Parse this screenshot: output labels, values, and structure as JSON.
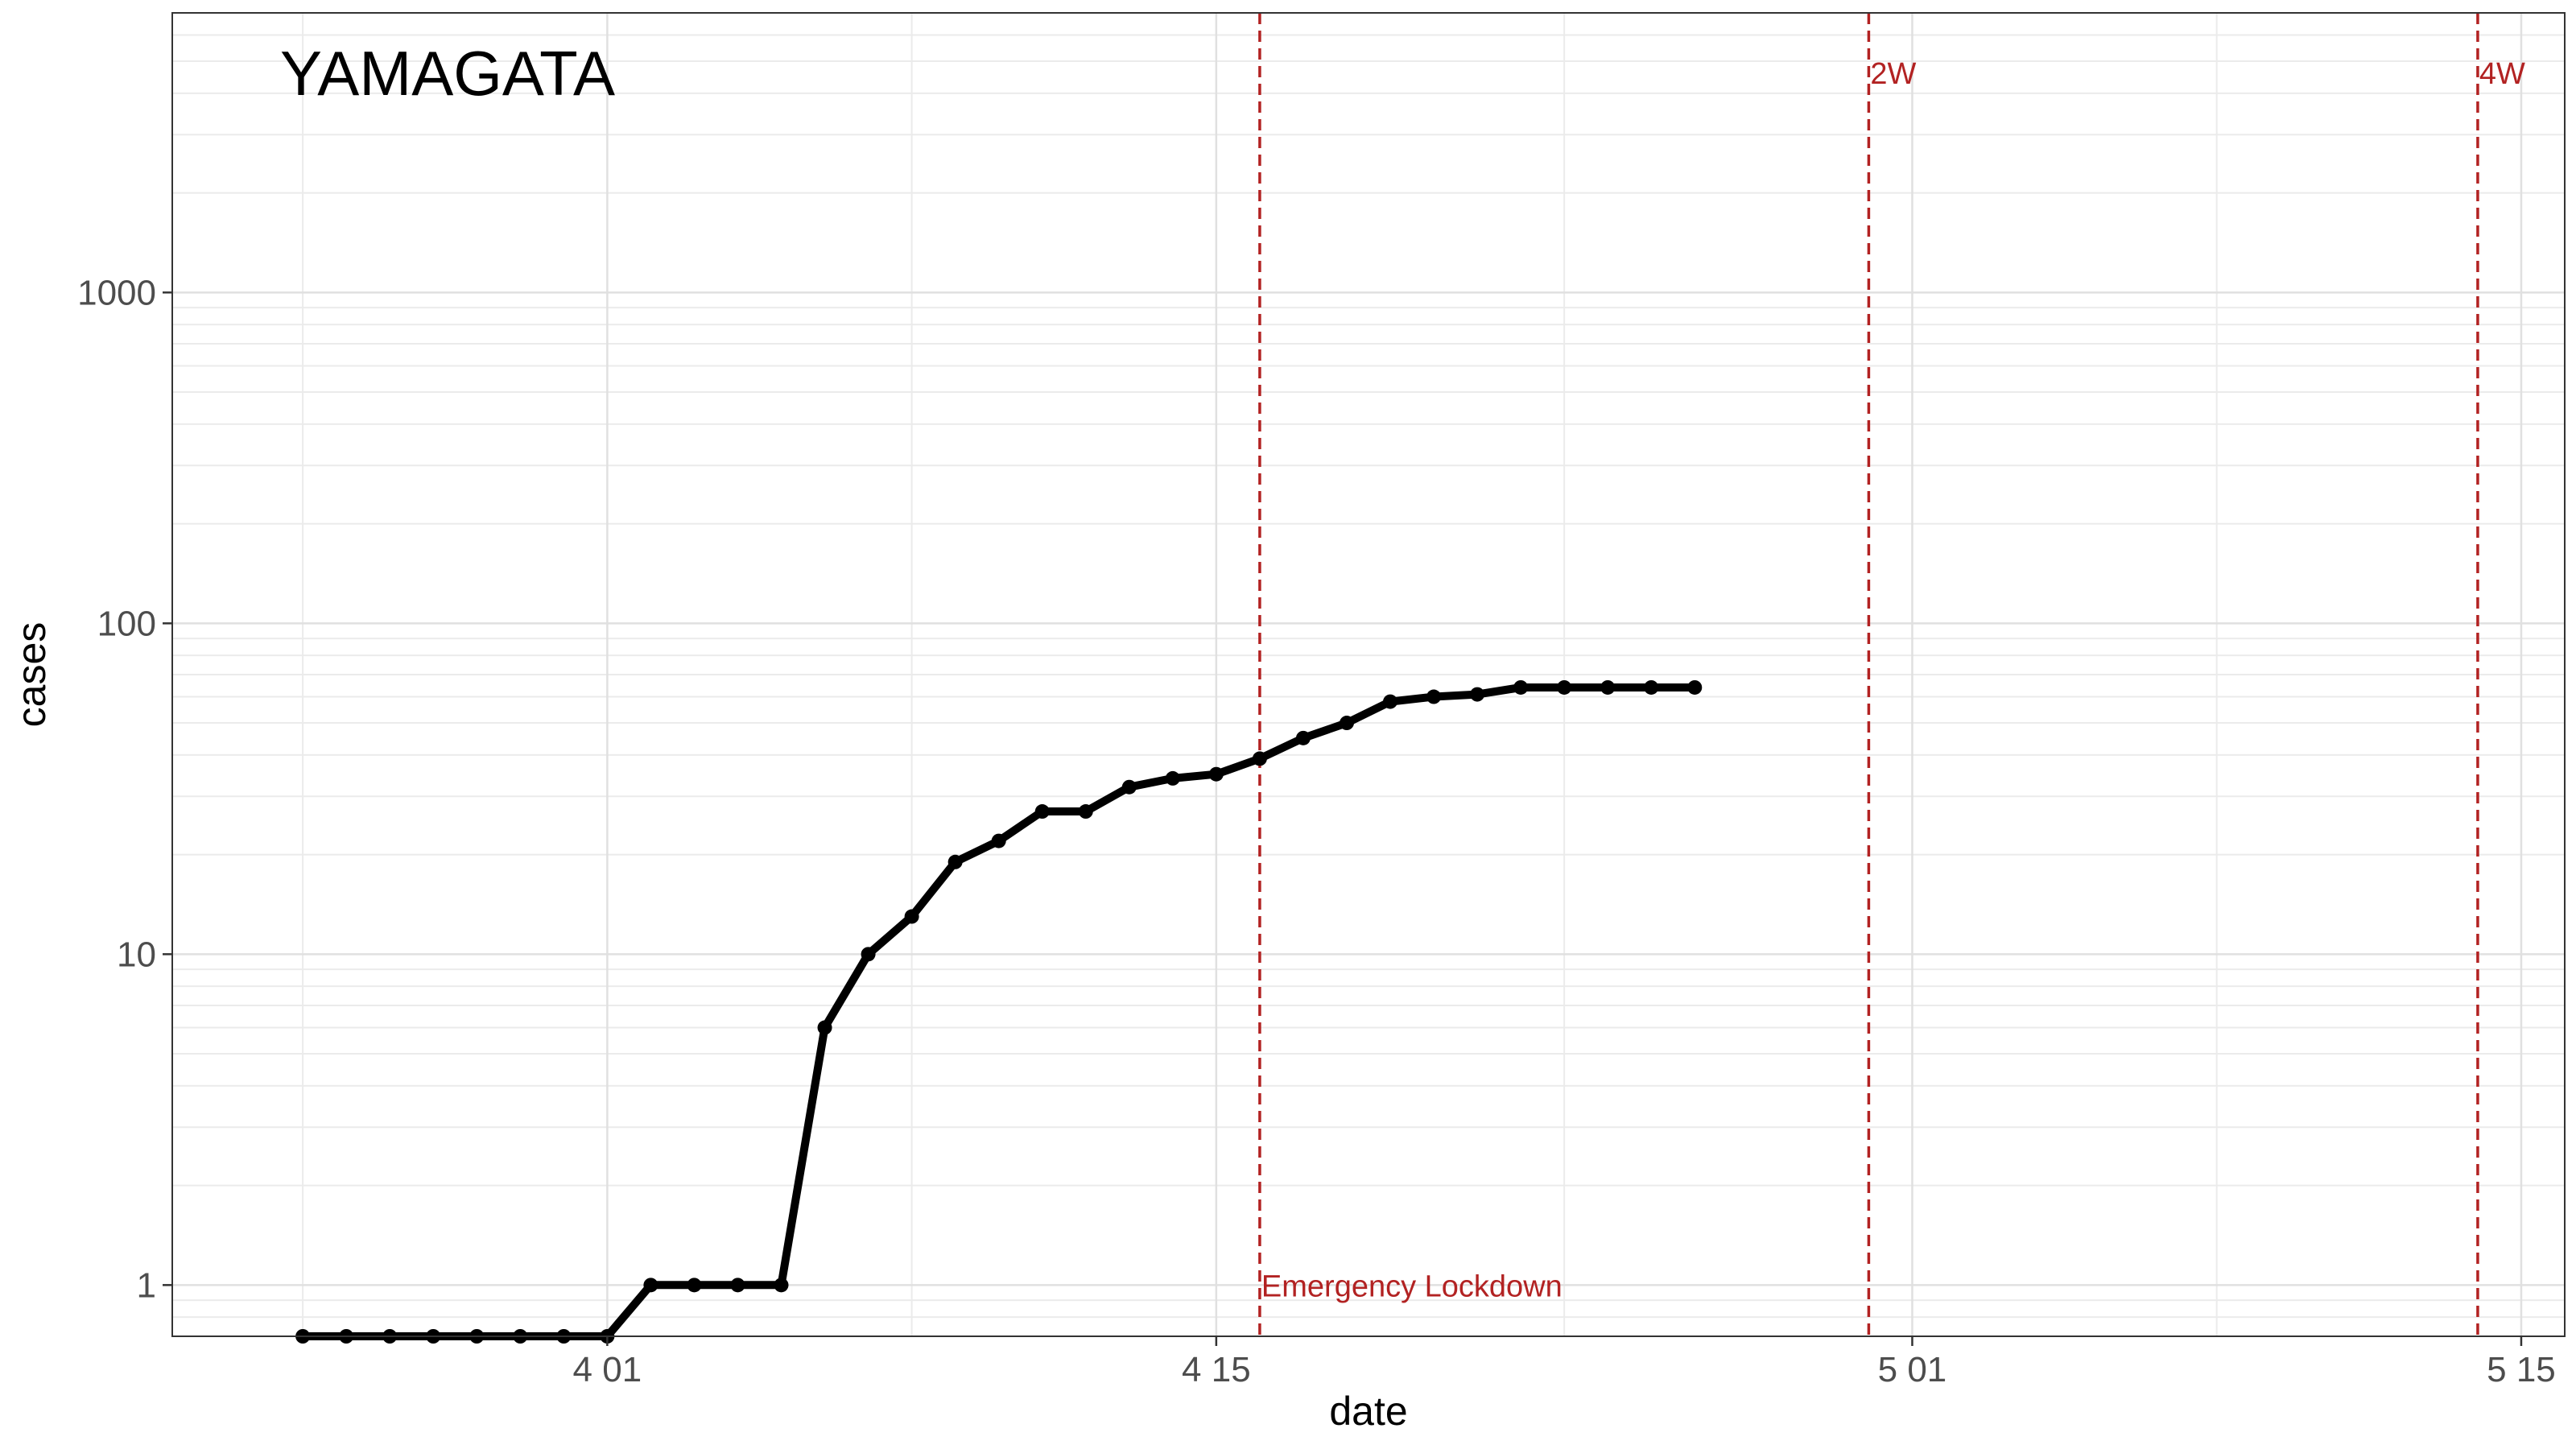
{
  "chart_data": {
    "type": "line",
    "title": "YAMAGATA",
    "xlabel": "date",
    "ylabel": "cases",
    "y_scale": "log10",
    "ylim": [
      0.7,
      7000
    ],
    "xlim": [
      "2020-03-22",
      "2020-05-16"
    ],
    "y_ticks": [
      {
        "value": 1,
        "label": "1"
      },
      {
        "value": 10,
        "label": "10"
      },
      {
        "value": 100,
        "label": "100"
      },
      {
        "value": 1000,
        "label": "1000"
      }
    ],
    "x_ticks": [
      {
        "date": "2020-04-01",
        "label": "4 01"
      },
      {
        "date": "2020-04-15",
        "label": "4 15"
      },
      {
        "date": "2020-05-01",
        "label": "5 01"
      },
      {
        "date": "2020-05-15",
        "label": "5 15"
      }
    ],
    "grid": true,
    "series": [
      {
        "color": "#000000",
        "x": [
          "2020-03-25",
          "2020-03-26",
          "2020-03-27",
          "2020-03-28",
          "2020-03-29",
          "2020-03-30",
          "2020-03-31",
          "2020-04-01",
          "2020-04-02",
          "2020-04-03",
          "2020-04-04",
          "2020-04-05",
          "2020-04-06",
          "2020-04-07",
          "2020-04-08",
          "2020-04-09",
          "2020-04-10",
          "2020-04-11",
          "2020-04-12",
          "2020-04-13",
          "2020-04-14",
          "2020-04-15",
          "2020-04-16",
          "2020-04-17",
          "2020-04-18",
          "2020-04-19",
          "2020-04-20",
          "2020-04-21",
          "2020-04-22",
          "2020-04-23",
          "2020-04-24",
          "2020-04-25",
          "2020-04-26"
        ],
        "values": [
          0.7,
          0.7,
          0.7,
          0.7,
          0.7,
          0.7,
          0.7,
          0.7,
          1,
          1,
          1,
          1,
          6,
          10,
          13,
          19,
          22,
          27,
          27,
          32,
          34,
          35,
          39,
          45,
          50,
          58,
          60,
          61,
          64,
          64,
          64,
          64,
          64
        ]
      }
    ],
    "vlines": [
      {
        "date": "2020-04-16",
        "label": "Emergency Lockdown",
        "label_position": "bottom",
        "color": "#b22222"
      },
      {
        "date": "2020-04-30",
        "label": "2W",
        "label_position": "top",
        "color": "#b22222"
      },
      {
        "date": "2020-05-14",
        "label": "4W",
        "label_position": "top",
        "color": "#b22222"
      }
    ]
  }
}
